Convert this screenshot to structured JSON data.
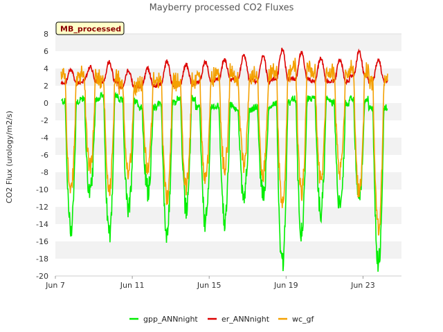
{
  "chart_data": {
    "type": "line",
    "title": "Mayberry processed CO2 Fluxes",
    "badge": "MB_processed",
    "xlabel": "",
    "ylabel": "CO2 Flux (urology/m2/s)",
    "xlim": [
      7.0,
      25.0
    ],
    "ylim": [
      -20,
      8
    ],
    "yticks": [
      8,
      6,
      4,
      2,
      0,
      -2,
      -4,
      -6,
      -8,
      -10,
      -12,
      -14,
      -16,
      -18,
      -20
    ],
    "xticks": [
      {
        "value": 7,
        "label": "Jun 7"
      },
      {
        "value": 11,
        "label": "Jun 11"
      },
      {
        "value": 15,
        "label": "Jun 15"
      },
      {
        "value": 19,
        "label": "Jun 19"
      },
      {
        "value": 23,
        "label": "Jun 23"
      }
    ],
    "grid": true,
    "legend_position": "bottom",
    "x_start": 7.3,
    "x_end": 24.5,
    "series": [
      {
        "name": "gpp_ANNnight",
        "color": "#00ee00",
        "daily_min": [
          -14.5,
          -10.5,
          -15.0,
          -12.5,
          -10.0,
          -15.0,
          -12.0,
          -13.8,
          -13.5,
          -10.5,
          -10.5,
          -18.8,
          -14.8,
          -12.5,
          -12.0,
          -11.0,
          -18.5
        ],
        "night_level": [
          0.2,
          0.5,
          0.8,
          0.3,
          -0.5,
          0.0,
          0.5,
          -0.5,
          -0.3,
          -0.8,
          -0.5,
          0.0,
          0.5,
          0.5,
          0.0,
          0.5,
          -0.5
        ]
      },
      {
        "name": "er_ANNnight",
        "color": "#dd0000",
        "daily_max": [
          3.8,
          4.2,
          4.8,
          3.8,
          4.0,
          4.8,
          4.5,
          4.8,
          5.0,
          5.5,
          5.5,
          6.2,
          5.8,
          5.2,
          5.0,
          6.0,
          5.0
        ],
        "night_level": [
          2.3,
          2.5,
          2.5,
          1.8,
          2.0,
          2.2,
          2.2,
          2.5,
          2.8,
          2.8,
          2.5,
          2.8,
          2.8,
          2.5,
          2.5,
          3.0,
          2.5
        ]
      },
      {
        "name": "wc_gf",
        "color": "#f4a000",
        "daily_min": [
          -10.5,
          -7.5,
          -10.0,
          -8.0,
          -7.5,
          -11.0,
          -9.5,
          -9.0,
          -7.5,
          -7.0,
          -8.0,
          -12.0,
          -10.5,
          -9.0,
          -8.0,
          -10.5,
          -14.5
        ],
        "daily_max": [
          4.0,
          4.2,
          3.8,
          3.0,
          3.5,
          3.5,
          3.5,
          4.0,
          4.5,
          4.0,
          4.5,
          4.5,
          5.0,
          4.5,
          4.5,
          5.0,
          3.5
        ]
      }
    ]
  }
}
